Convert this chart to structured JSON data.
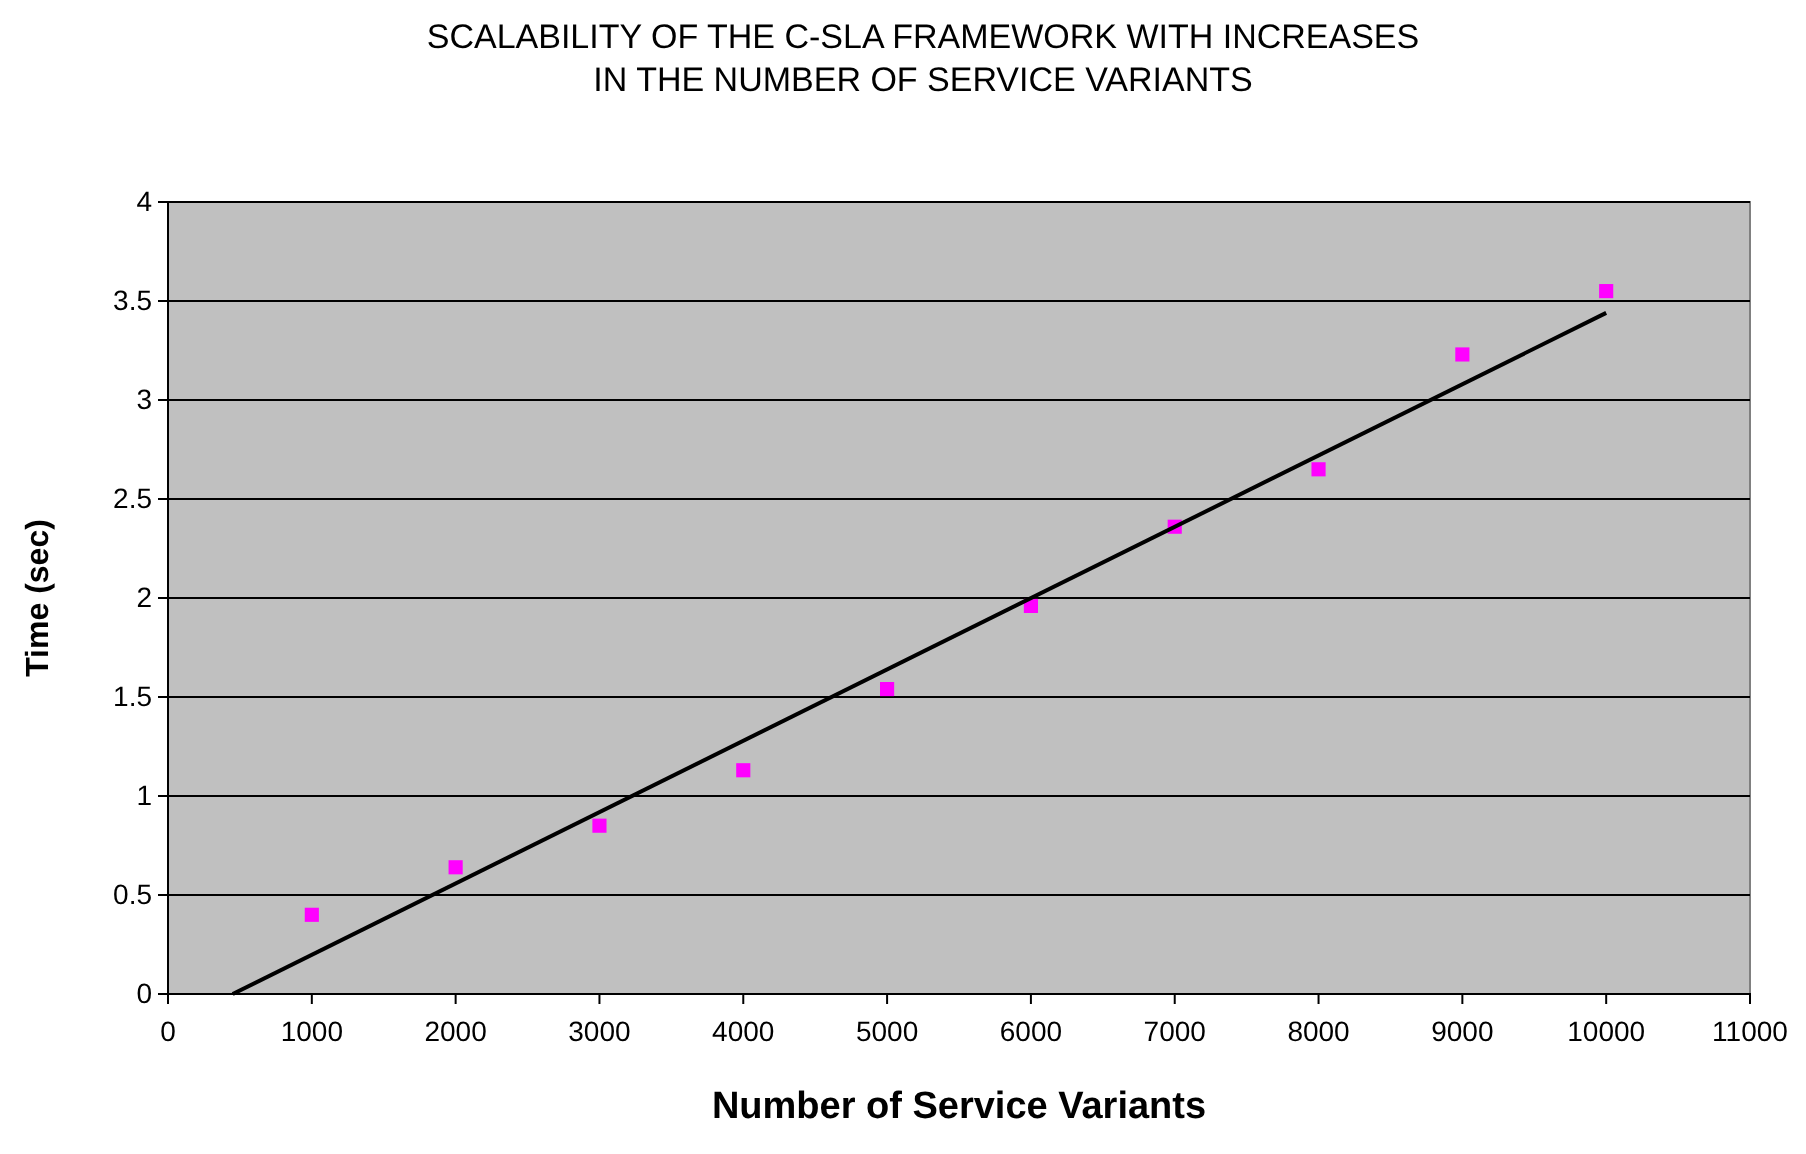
{
  "chart_data": {
    "type": "scatter",
    "title": "SCALABILITY OF THE C-SLA FRAMEWORK WITH INCREASES\nIN THE NUMBER OF SERVICE VARIANTS",
    "xlabel": "Number of Service Variants",
    "ylabel": "Time (sec)",
    "xlim": [
      0,
      11000
    ],
    "xticks": [
      0,
      1000,
      2000,
      3000,
      4000,
      5000,
      6000,
      7000,
      8000,
      9000,
      10000,
      11000
    ],
    "ylim": [
      0,
      4
    ],
    "yticks": [
      0,
      0.5,
      1,
      1.5,
      2,
      2.5,
      3,
      3.5,
      4
    ],
    "grid": "y",
    "marker": "square",
    "series": [
      {
        "color": "#ff00ff",
        "x": [
          1000,
          2000,
          3000,
          4000,
          5000,
          6000,
          7000,
          8000,
          9000,
          10000
        ],
        "values": [
          0.4,
          0.64,
          0.85,
          1.13,
          1.54,
          1.96,
          2.36,
          2.65,
          3.23,
          3.55
        ]
      },
      {
        "type": "line",
        "color": "#000000",
        "line_style": "solid",
        "marker": "none",
        "x": [
          450,
          10000
        ],
        "values": [
          0,
          3.44
        ]
      }
    ]
  }
}
